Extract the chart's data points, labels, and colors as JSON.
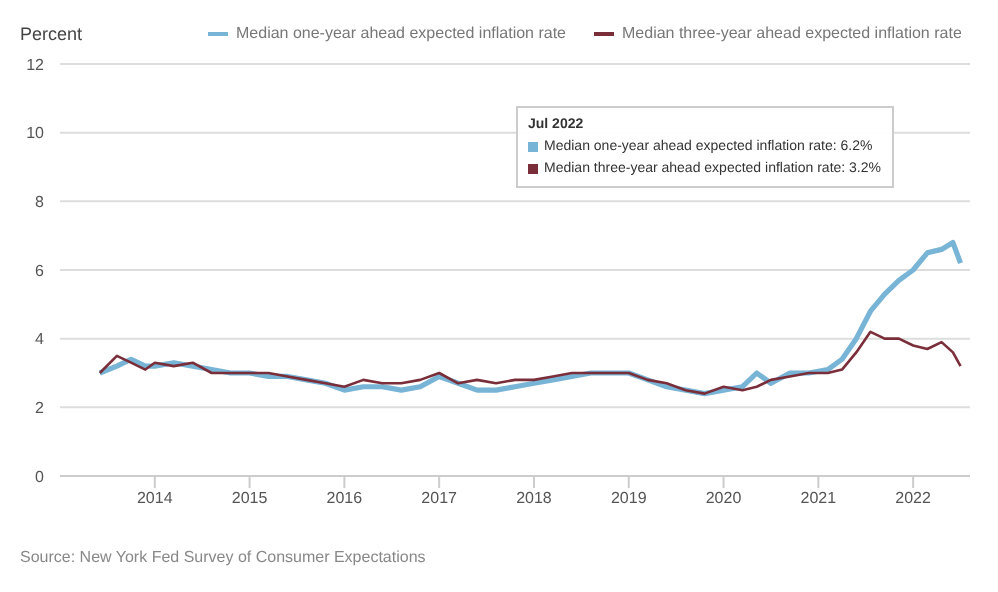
{
  "chart_data": {
    "type": "line",
    "ylabel": "Percent",
    "x": [
      2013.42,
      2013.6,
      2013.75,
      2013.9,
      2014.0,
      2014.2,
      2014.4,
      2014.6,
      2014.8,
      2015.0,
      2015.2,
      2015.4,
      2015.6,
      2015.8,
      2016.0,
      2016.2,
      2016.4,
      2016.6,
      2016.8,
      2017.0,
      2017.2,
      2017.4,
      2017.6,
      2017.8,
      2018.0,
      2018.2,
      2018.4,
      2018.6,
      2018.8,
      2019.0,
      2019.2,
      2019.4,
      2019.6,
      2019.8,
      2020.0,
      2020.2,
      2020.35,
      2020.5,
      2020.7,
      2020.9,
      2021.1,
      2021.25,
      2021.4,
      2021.55,
      2021.7,
      2021.85,
      2022.0,
      2022.15,
      2022.3,
      2022.42,
      2022.5
    ],
    "series": [
      {
        "name": "Median one-year ahead expected inflation rate",
        "color": "#78b4d6",
        "values": [
          3.0,
          3.2,
          3.4,
          3.2,
          3.2,
          3.3,
          3.2,
          3.1,
          3.0,
          3.0,
          2.9,
          2.9,
          2.8,
          2.7,
          2.5,
          2.6,
          2.6,
          2.5,
          2.6,
          2.9,
          2.7,
          2.5,
          2.5,
          2.6,
          2.7,
          2.8,
          2.9,
          3.0,
          3.0,
          3.0,
          2.8,
          2.6,
          2.5,
          2.4,
          2.5,
          2.6,
          3.0,
          2.7,
          3.0,
          3.0,
          3.1,
          3.4,
          4.0,
          4.8,
          5.3,
          5.7,
          6.0,
          6.5,
          6.6,
          6.8,
          6.2
        ]
      },
      {
        "name": "Median three-year ahead expected inflation rate",
        "color": "#7a2e3a",
        "values": [
          3.0,
          3.5,
          3.3,
          3.1,
          3.3,
          3.2,
          3.3,
          3.0,
          3.0,
          3.0,
          3.0,
          2.9,
          2.8,
          2.7,
          2.6,
          2.8,
          2.7,
          2.7,
          2.8,
          3.0,
          2.7,
          2.8,
          2.7,
          2.8,
          2.8,
          2.9,
          3.0,
          3.0,
          3.0,
          3.0,
          2.8,
          2.7,
          2.5,
          2.4,
          2.6,
          2.5,
          2.6,
          2.8,
          2.9,
          3.0,
          3.0,
          3.1,
          3.6,
          4.2,
          4.0,
          4.0,
          3.8,
          3.7,
          3.9,
          3.6,
          3.2
        ]
      }
    ],
    "xlim": [
      2013,
      2022.6
    ],
    "xticks": [
      2014,
      2015,
      2016,
      2017,
      2018,
      2019,
      2020,
      2021,
      2022
    ],
    "ylim": [
      0,
      12
    ],
    "yticks": [
      0,
      2,
      4,
      6,
      8,
      10,
      12
    ],
    "grid": "y",
    "legend": "top",
    "marker": "none",
    "line_style": "solid",
    "annotations": [
      "Jul 2022",
      "Median one-year ahead expected inflation rate: 6.2%",
      "Median three-year ahead expected inflation rate: 3.2%",
      "Source: New York Fed Survey of Consumer Expectations"
    ]
  }
}
